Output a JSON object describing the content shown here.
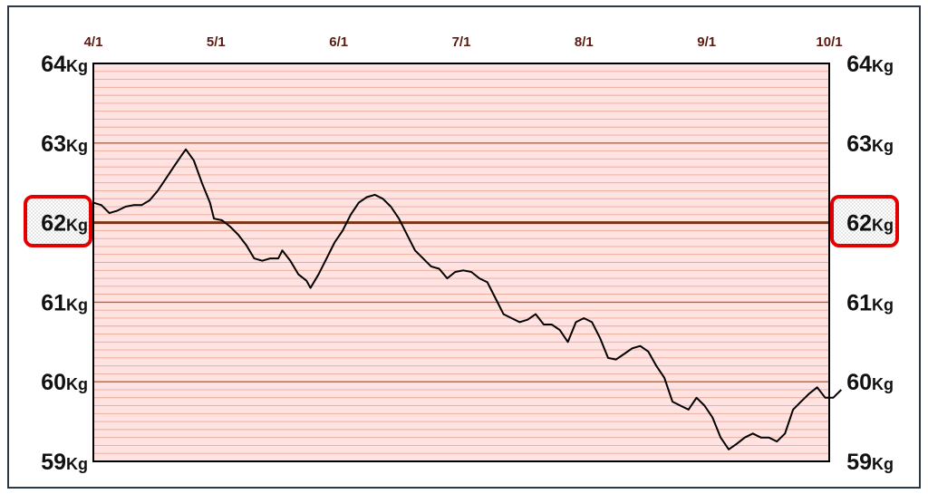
{
  "chart_data": {
    "type": "line",
    "title": "",
    "xlabel": "",
    "ylabel": "",
    "x_tick_labels": [
      "4/1",
      "5/1",
      "6/1",
      "7/1",
      "8/1",
      "9/1",
      "10/1"
    ],
    "y_ticks": [
      {
        "value": 64,
        "num": "64",
        "unit": "Kg"
      },
      {
        "value": 63,
        "num": "63",
        "unit": "Kg"
      },
      {
        "value": 62,
        "num": "62",
        "unit": "Kg"
      },
      {
        "value": 61,
        "num": "61",
        "unit": "Kg"
      },
      {
        "value": 60,
        "num": "60",
        "unit": "Kg"
      },
      {
        "value": 59,
        "num": "59",
        "unit": "Kg"
      }
    ],
    "ylim": [
      59,
      64
    ],
    "highlighted_value": 62,
    "minor_grid_step": 0.1,
    "grid": true,
    "colors": {
      "plot_background": "#ffe3e3",
      "major_gridline": "#c0602a",
      "minor_gridline": "#eba890",
      "target_line": "#7a3414",
      "highlight_box": "#e30000",
      "series_line": "#000000",
      "date_label": "#5a1a10"
    },
    "series": [
      {
        "points": [
          [
            "2024-04-01",
            62.25
          ],
          [
            "2024-04-03",
            62.22
          ],
          [
            "2024-04-05",
            62.12
          ],
          [
            "2024-04-07",
            62.15
          ],
          [
            "2024-04-09",
            62.2
          ],
          [
            "2024-04-11",
            62.22
          ],
          [
            "2024-04-13",
            62.22
          ],
          [
            "2024-04-15",
            62.28
          ],
          [
            "2024-04-17",
            62.4
          ],
          [
            "2024-04-19",
            62.55
          ],
          [
            "2024-04-21",
            62.7
          ],
          [
            "2024-04-23",
            62.85
          ],
          [
            "2024-04-24",
            62.92
          ],
          [
            "2024-04-26",
            62.78
          ],
          [
            "2024-04-28",
            62.5
          ],
          [
            "2024-04-30",
            62.25
          ],
          [
            "2024-05-01",
            62.05
          ],
          [
            "2024-05-03",
            62.03
          ],
          [
            "2024-05-05",
            61.95
          ],
          [
            "2024-05-07",
            61.85
          ],
          [
            "2024-05-09",
            61.72
          ],
          [
            "2024-05-11",
            61.55
          ],
          [
            "2024-05-13",
            61.52
          ],
          [
            "2024-05-15",
            61.55
          ],
          [
            "2024-05-17",
            61.55
          ],
          [
            "2024-05-18",
            61.65
          ],
          [
            "2024-05-20",
            61.52
          ],
          [
            "2024-05-22",
            61.35
          ],
          [
            "2024-05-24",
            61.27
          ],
          [
            "2024-05-25",
            61.18
          ],
          [
            "2024-05-27",
            61.35
          ],
          [
            "2024-05-29",
            61.55
          ],
          [
            "2024-05-31",
            61.75
          ],
          [
            "2024-06-02",
            61.9
          ],
          [
            "2024-06-04",
            62.1
          ],
          [
            "2024-06-06",
            62.25
          ],
          [
            "2024-06-08",
            62.32
          ],
          [
            "2024-06-10",
            62.35
          ],
          [
            "2024-06-12",
            62.3
          ],
          [
            "2024-06-14",
            62.2
          ],
          [
            "2024-06-16",
            62.05
          ],
          [
            "2024-06-18",
            61.85
          ],
          [
            "2024-06-20",
            61.65
          ],
          [
            "2024-06-22",
            61.55
          ],
          [
            "2024-06-24",
            61.45
          ],
          [
            "2024-06-26",
            61.42
          ],
          [
            "2024-06-28",
            61.3
          ],
          [
            "2024-06-30",
            61.38
          ],
          [
            "2024-07-02",
            61.4
          ],
          [
            "2024-07-04",
            61.38
          ],
          [
            "2024-07-06",
            61.3
          ],
          [
            "2024-07-08",
            61.25
          ],
          [
            "2024-07-10",
            61.05
          ],
          [
            "2024-07-12",
            60.85
          ],
          [
            "2024-07-14",
            60.8
          ],
          [
            "2024-07-16",
            60.75
          ],
          [
            "2024-07-18",
            60.78
          ],
          [
            "2024-07-20",
            60.85
          ],
          [
            "2024-07-22",
            60.72
          ],
          [
            "2024-07-24",
            60.72
          ],
          [
            "2024-07-26",
            60.65
          ],
          [
            "2024-07-28",
            60.5
          ],
          [
            "2024-07-30",
            60.75
          ],
          [
            "2024-08-01",
            60.8
          ],
          [
            "2024-08-03",
            60.75
          ],
          [
            "2024-08-05",
            60.55
          ],
          [
            "2024-08-07",
            60.3
          ],
          [
            "2024-08-09",
            60.28
          ],
          [
            "2024-08-11",
            60.35
          ],
          [
            "2024-08-13",
            60.42
          ],
          [
            "2024-08-15",
            60.45
          ],
          [
            "2024-08-17",
            60.38
          ],
          [
            "2024-08-19",
            60.2
          ],
          [
            "2024-08-21",
            60.05
          ],
          [
            "2024-08-23",
            59.75
          ],
          [
            "2024-08-25",
            59.7
          ],
          [
            "2024-08-27",
            59.65
          ],
          [
            "2024-08-29",
            59.8
          ],
          [
            "2024-08-31",
            59.7
          ],
          [
            "2024-09-02",
            59.55
          ],
          [
            "2024-09-04",
            59.3
          ],
          [
            "2024-09-06",
            59.15
          ],
          [
            "2024-09-08",
            59.22
          ],
          [
            "2024-09-10",
            59.3
          ],
          [
            "2024-09-12",
            59.35
          ],
          [
            "2024-09-14",
            59.3
          ],
          [
            "2024-09-16",
            59.3
          ],
          [
            "2024-09-18",
            59.25
          ],
          [
            "2024-09-20",
            59.35
          ],
          [
            "2024-09-22",
            59.65
          ],
          [
            "2024-09-24",
            59.75
          ],
          [
            "2024-09-26",
            59.85
          ],
          [
            "2024-09-28",
            59.93
          ],
          [
            "2024-09-30",
            59.8
          ],
          [
            "2024-10-02",
            59.8
          ],
          [
            "2024-10-04",
            59.9
          ]
        ]
      }
    ]
  }
}
